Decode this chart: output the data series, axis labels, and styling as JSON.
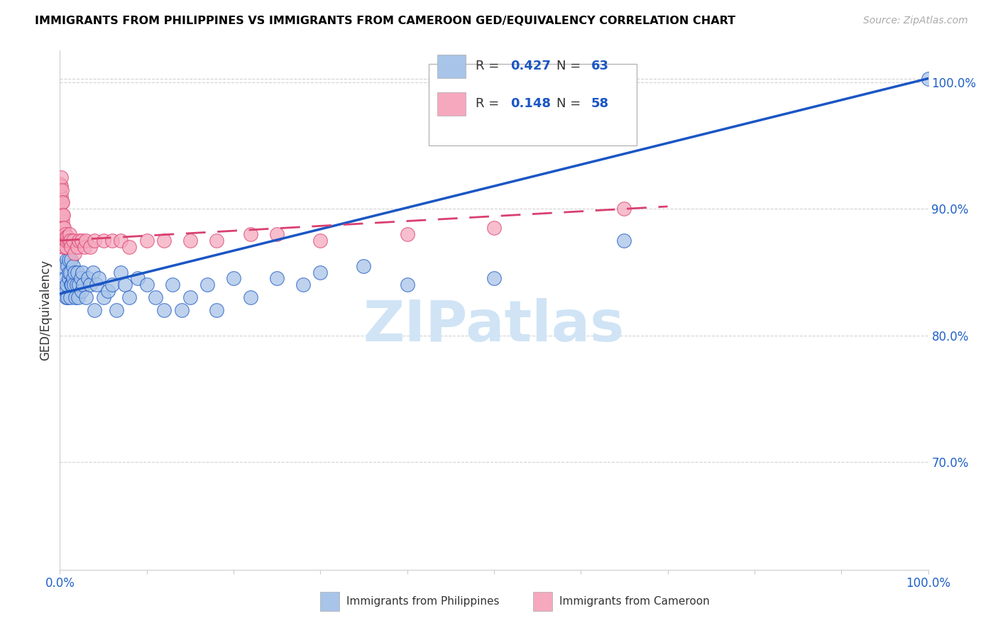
{
  "title": "IMMIGRANTS FROM PHILIPPINES VS IMMIGRANTS FROM CAMEROON GED/EQUIVALENCY CORRELATION CHART",
  "source": "Source: ZipAtlas.com",
  "ylabel": "GED/Equivalency",
  "xlim": [
    0.0,
    1.0
  ],
  "ylim": [
    0.615,
    1.025
  ],
  "x_tick_labels": [
    "0.0%",
    "",
    "",
    "",
    "",
    "",
    "",
    "",
    "",
    "",
    "100.0%"
  ],
  "y_tick_labels_right": [
    "70.0%",
    "80.0%",
    "90.0%",
    "100.0%"
  ],
  "y_tick_vals_right": [
    0.7,
    0.8,
    0.9,
    1.0
  ],
  "philippines_R": 0.427,
  "philippines_N": 63,
  "cameroon_R": 0.148,
  "cameroon_N": 58,
  "philippines_color": "#a8c4e8",
  "cameroon_color": "#f5a8be",
  "philippines_line_color": "#1a56c4",
  "cameroon_line_color": "#d94070",
  "legend_color": "#1a56c4",
  "watermark_text": "ZIPatlas",
  "philippines_x": [
    0.003,
    0.005,
    0.006,
    0.007,
    0.007,
    0.008,
    0.008,
    0.009,
    0.009,
    0.01,
    0.01,
    0.01,
    0.012,
    0.012,
    0.013,
    0.013,
    0.014,
    0.015,
    0.015,
    0.016,
    0.017,
    0.018,
    0.019,
    0.02,
    0.021,
    0.022,
    0.024,
    0.025,
    0.026,
    0.027,
    0.03,
    0.032,
    0.035,
    0.038,
    0.04,
    0.042,
    0.045,
    0.05,
    0.055,
    0.06,
    0.065,
    0.07,
    0.075,
    0.08,
    0.09,
    0.1,
    0.11,
    0.12,
    0.13,
    0.14,
    0.15,
    0.17,
    0.18,
    0.2,
    0.22,
    0.25,
    0.28,
    0.3,
    0.35,
    0.4,
    0.5,
    0.65,
    1.0
  ],
  "philippines_y": [
    0.855,
    0.84,
    0.845,
    0.835,
    0.83,
    0.86,
    0.84,
    0.855,
    0.83,
    0.845,
    0.85,
    0.86,
    0.83,
    0.85,
    0.84,
    0.86,
    0.84,
    0.845,
    0.855,
    0.84,
    0.85,
    0.83,
    0.84,
    0.85,
    0.83,
    0.84,
    0.845,
    0.835,
    0.85,
    0.84,
    0.83,
    0.845,
    0.84,
    0.85,
    0.82,
    0.84,
    0.845,
    0.83,
    0.835,
    0.84,
    0.82,
    0.85,
    0.84,
    0.83,
    0.845,
    0.84,
    0.83,
    0.82,
    0.84,
    0.82,
    0.83,
    0.84,
    0.82,
    0.845,
    0.83,
    0.845,
    0.84,
    0.85,
    0.855,
    0.84,
    0.845,
    0.875,
    1.003
  ],
  "cameroon_x": [
    0.0,
    0.0,
    0.0,
    0.0,
    0.001,
    0.001,
    0.001,
    0.001,
    0.001,
    0.002,
    0.002,
    0.002,
    0.002,
    0.003,
    0.003,
    0.003,
    0.003,
    0.003,
    0.004,
    0.004,
    0.004,
    0.004,
    0.005,
    0.005,
    0.005,
    0.006,
    0.006,
    0.007,
    0.007,
    0.008,
    0.009,
    0.01,
    0.011,
    0.012,
    0.013,
    0.015,
    0.017,
    0.02,
    0.022,
    0.025,
    0.028,
    0.03,
    0.035,
    0.04,
    0.05,
    0.06,
    0.07,
    0.08,
    0.1,
    0.12,
    0.15,
    0.18,
    0.22,
    0.25,
    0.3,
    0.4,
    0.5,
    0.65
  ],
  "cameroon_y": [
    0.903,
    0.91,
    0.915,
    0.92,
    0.895,
    0.905,
    0.91,
    0.918,
    0.925,
    0.885,
    0.895,
    0.905,
    0.915,
    0.875,
    0.885,
    0.89,
    0.895,
    0.905,
    0.87,
    0.875,
    0.885,
    0.895,
    0.87,
    0.878,
    0.885,
    0.875,
    0.88,
    0.87,
    0.878,
    0.875,
    0.878,
    0.875,
    0.88,
    0.875,
    0.87,
    0.875,
    0.865,
    0.87,
    0.875,
    0.875,
    0.87,
    0.875,
    0.87,
    0.875,
    0.875,
    0.875,
    0.875,
    0.87,
    0.875,
    0.875,
    0.875,
    0.875,
    0.88,
    0.88,
    0.875,
    0.88,
    0.885,
    0.9
  ]
}
